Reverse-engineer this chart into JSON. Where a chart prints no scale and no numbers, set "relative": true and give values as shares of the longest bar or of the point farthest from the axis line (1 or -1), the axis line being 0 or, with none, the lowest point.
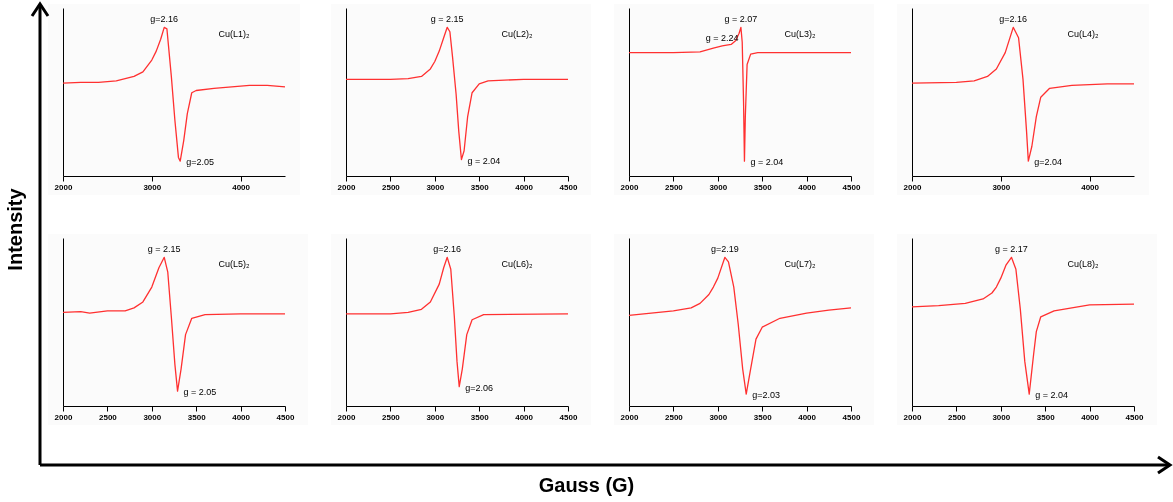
{
  "chart_data": [
    {
      "type": "line",
      "relative": true,
      "xlim": [
        2000,
        4500
      ],
      "xticks": [
        2000,
        3000,
        4000
      ],
      "x": [
        2000,
        2200,
        2400,
        2600,
        2800,
        2900,
        3000,
        3050,
        3100,
        3140,
        3170,
        3220,
        3260,
        3300,
        3320,
        3360,
        3400,
        3450,
        3500,
        3700,
        3900,
        4100,
        4300,
        4500
      ],
      "series": [
        {
          "color": "#ff3030",
          "values": [
            0.625,
            0.63,
            0.63,
            0.64,
            0.67,
            0.7,
            0.78,
            0.84,
            0.92,
            1.0,
            0.99,
            0.67,
            0.375,
            0.125,
            0.1,
            0.24,
            0.42,
            0.56,
            0.575,
            0.59,
            0.6,
            0.61,
            0.61,
            0.6
          ]
        }
      ],
      "annotations": [
        {
          "text": "g=2.16",
          "x": 3140,
          "y": 1.0
        },
        {
          "text": "g=2.05",
          "x": 3320,
          "y": 0.1
        },
        "Cu(L1)₂",
        "Intensity",
        "Gauss (G)"
      ]
    },
    {
      "type": "line",
      "relative": true,
      "xlim": [
        2000,
        4500
      ],
      "xticks": [
        2000,
        2500,
        3000,
        3500,
        4000,
        4500
      ],
      "x": [
        2000,
        2500,
        2700,
        2850,
        2950,
        3000,
        3050,
        3100,
        3140,
        3170,
        3200,
        3240,
        3270,
        3300,
        3330,
        3370,
        3420,
        3500,
        3600,
        4000,
        4500
      ],
      "series": [
        {
          "color": "#ff3030",
          "values": [
            0.65,
            0.65,
            0.655,
            0.67,
            0.72,
            0.77,
            0.84,
            0.93,
            1.0,
            0.97,
            0.8,
            0.55,
            0.3,
            0.11,
            0.17,
            0.4,
            0.56,
            0.62,
            0.64,
            0.65,
            0.65
          ]
        }
      ],
      "annotations": [
        {
          "text": "g = 2.15",
          "x": 3140,
          "y": 1.0
        },
        {
          "text": "g = 2.04",
          "x": 3300,
          "y": 0.11
        },
        "Cu(L2)₂"
      ]
    },
    {
      "type": "line",
      "relative": true,
      "xlim": [
        2000,
        4500
      ],
      "xticks": [
        2000,
        2500,
        3000,
        3500,
        4000,
        4500
      ],
      "x": [
        2000,
        2500,
        2800,
        2950,
        3050,
        3150,
        3200,
        3240,
        3260,
        3275,
        3290,
        3300,
        3310,
        3330,
        3370,
        3450,
        4500
      ],
      "series": [
        {
          "color": "#ff3030",
          "values": [
            0.83,
            0.83,
            0.835,
            0.86,
            0.875,
            0.885,
            0.91,
            0.96,
            1.0,
            0.9,
            0.5,
            0.1,
            0.4,
            0.75,
            0.82,
            0.83,
            0.83
          ]
        }
      ],
      "annotations": [
        {
          "text": "g = 2.24",
          "x": 3050,
          "y": 0.875
        },
        {
          "text": "g = 2.07",
          "x": 3260,
          "y": 1.0
        },
        {
          "text": "g = 2.04",
          "x": 3300,
          "y": 0.1
        },
        "Cu(L3)₂"
      ]
    },
    {
      "type": "line",
      "relative": true,
      "xlim": [
        2000,
        4500
      ],
      "xticks": [
        2000,
        3000,
        4000
      ],
      "x": [
        2000,
        2500,
        2700,
        2850,
        2950,
        3050,
        3140,
        3200,
        3250,
        3290,
        3310,
        3350,
        3400,
        3450,
        3550,
        3800,
        4200,
        4500
      ],
      "series": [
        {
          "color": "#ff3030",
          "values": [
            0.625,
            0.63,
            0.64,
            0.67,
            0.72,
            0.83,
            1.0,
            0.93,
            0.65,
            0.3,
            0.1,
            0.2,
            0.4,
            0.53,
            0.59,
            0.61,
            0.62,
            0.62
          ]
        }
      ],
      "annotations": [
        {
          "text": "g=2.16",
          "x": 3140,
          "y": 1.0
        },
        {
          "text": "g=2.04",
          "x": 3310,
          "y": 0.1
        },
        "Cu(L4)₂"
      ]
    },
    {
      "type": "line",
      "relative": true,
      "xlim": [
        2000,
        4500
      ],
      "xticks": [
        2000,
        2500,
        3000,
        3500,
        4000,
        4500
      ],
      "x": [
        2000,
        2200,
        2300,
        2500,
        2700,
        2800,
        2900,
        3000,
        3080,
        3140,
        3180,
        3220,
        3260,
        3290,
        3330,
        3380,
        3450,
        3600,
        4000,
        4500
      ],
      "series": [
        {
          "color": "#ff3030",
          "values": [
            0.63,
            0.635,
            0.625,
            0.64,
            0.64,
            0.66,
            0.7,
            0.8,
            0.93,
            1.0,
            0.9,
            0.6,
            0.28,
            0.1,
            0.25,
            0.48,
            0.59,
            0.615,
            0.62,
            0.62
          ]
        }
      ],
      "annotations": [
        {
          "text": "g = 2.15",
          "x": 3140,
          "y": 1.0
        },
        {
          "text": "g = 2.05",
          "x": 3290,
          "y": 0.1
        },
        "Cu(L5)₂"
      ]
    },
    {
      "type": "line",
      "relative": true,
      "xlim": [
        2000,
        4500
      ],
      "xticks": [
        2000,
        2500,
        3000,
        3500,
        4000,
        4500
      ],
      "x": [
        2000,
        2500,
        2700,
        2850,
        2950,
        3050,
        3100,
        3140,
        3180,
        3220,
        3250,
        3275,
        3310,
        3360,
        3420,
        3550,
        4500
      ],
      "series": [
        {
          "color": "#ff3030",
          "values": [
            0.62,
            0.62,
            0.63,
            0.65,
            0.7,
            0.82,
            0.93,
            1.0,
            0.92,
            0.6,
            0.3,
            0.13,
            0.25,
            0.48,
            0.58,
            0.615,
            0.62
          ]
        }
      ],
      "annotations": [
        {
          "text": "g=2.16",
          "x": 3140,
          "y": 1.0
        },
        {
          "text": "g=2.06",
          "x": 3275,
          "y": 0.13
        },
        "Cu(L6)₂"
      ]
    },
    {
      "type": "line",
      "relative": true,
      "xlim": [
        2000,
        4500
      ],
      "xticks": [
        2000,
        2500,
        3000,
        3500,
        4000,
        4500
      ],
      "x": [
        2000,
        2250,
        2500,
        2700,
        2800,
        2900,
        2950,
        3000,
        3080,
        3120,
        3180,
        3230,
        3280,
        3320,
        3370,
        3430,
        3500,
        3700,
        4000,
        4250,
        4500
      ],
      "series": [
        {
          "color": "#ff3030",
          "values": [
            0.61,
            0.625,
            0.64,
            0.66,
            0.69,
            0.75,
            0.8,
            0.86,
            1.0,
            0.97,
            0.8,
            0.55,
            0.25,
            0.08,
            0.25,
            0.45,
            0.53,
            0.59,
            0.625,
            0.645,
            0.66
          ]
        }
      ],
      "annotations": [
        {
          "text": "g=2.19",
          "x": 3080,
          "y": 1.0
        },
        {
          "text": "g=2.03",
          "x": 3320,
          "y": 0.08
        },
        "Cu(L7)₂"
      ]
    },
    {
      "type": "line",
      "relative": true,
      "xlim": [
        2000,
        4500
      ],
      "xticks": [
        2000,
        2500,
        3000,
        3500,
        4000,
        4500
      ],
      "x": [
        2000,
        2300,
        2600,
        2800,
        2900,
        2950,
        3000,
        3060,
        3120,
        3170,
        3220,
        3270,
        3320,
        3370,
        3400,
        3450,
        3600,
        3800,
        4000,
        4500
      ],
      "series": [
        {
          "color": "#ff3030",
          "values": [
            0.667,
            0.675,
            0.69,
            0.72,
            0.76,
            0.8,
            0.86,
            0.95,
            1.0,
            0.92,
            0.65,
            0.3,
            0.08,
            0.35,
            0.5,
            0.6,
            0.64,
            0.66,
            0.68,
            0.685
          ]
        }
      ],
      "annotations": [
        {
          "text": "g = 2.17",
          "x": 3120,
          "y": 1.0
        },
        {
          "text": "g = 2.04",
          "x": 3320,
          "y": 0.08
        },
        "Cu(L8)₂"
      ]
    }
  ]
}
